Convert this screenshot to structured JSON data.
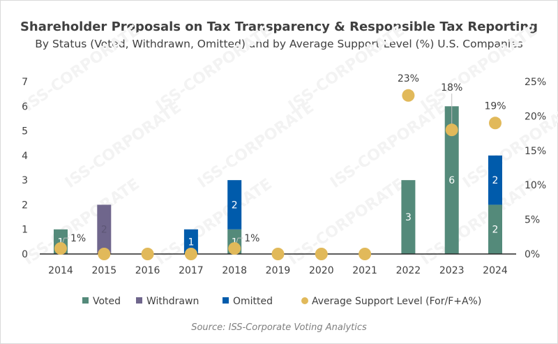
{
  "chart_data": {
    "type": "bar",
    "title": "Shareholder Proposals on Tax Transparency & Responsible Tax Reporting",
    "subtitle": "By Status (Voted, Withdrawn, Omitted) and by Average Support Level (%) U.S. Companies",
    "source": "Source: ISS-Corporate Voting Analytics",
    "categories": [
      "2014",
      "2015",
      "2016",
      "2017",
      "2018",
      "2019",
      "2020",
      "2021",
      "2022",
      "2023",
      "2024"
    ],
    "stacked": true,
    "series": [
      {
        "name": "Voted",
        "color": "#548a7a",
        "values": [
          1,
          0,
          0,
          0,
          1,
          0,
          0,
          0,
          3,
          6,
          2
        ]
      },
      {
        "name": "Withdrawn",
        "color": "#6f668c",
        "values": [
          0,
          2,
          0,
          0,
          0,
          0,
          0,
          0,
          0,
          0,
          0
        ]
      },
      {
        "name": "Omitted",
        "color": "#005bab",
        "values": [
          0,
          0,
          0,
          1,
          2,
          0,
          0,
          0,
          0,
          0,
          2
        ]
      }
    ],
    "line_series": {
      "name": "Average Support Level (For/F+A%)",
      "color": "#e1b95a",
      "axis": "right",
      "marker": "circle",
      "values": [
        1,
        0,
        0,
        0,
        1,
        0,
        0,
        0,
        23,
        18,
        19
      ],
      "labels": [
        "1%",
        "",
        "",
        "",
        "1%",
        "",
        "",
        "",
        "23%",
        "18%",
        "19%"
      ]
    },
    "y_left": {
      "ticks": [
        "0",
        "1",
        "2",
        "3",
        "4",
        "5",
        "6",
        "7"
      ],
      "ylim": [
        0,
        7
      ]
    },
    "y_right": {
      "ticks": [
        "0%",
        "5%",
        "10%",
        "15%",
        "20%",
        "25%"
      ],
      "ylim": [
        0,
        25
      ]
    },
    "grid": false,
    "legend": "bottom",
    "watermark": "ISS-CORPORATE"
  }
}
